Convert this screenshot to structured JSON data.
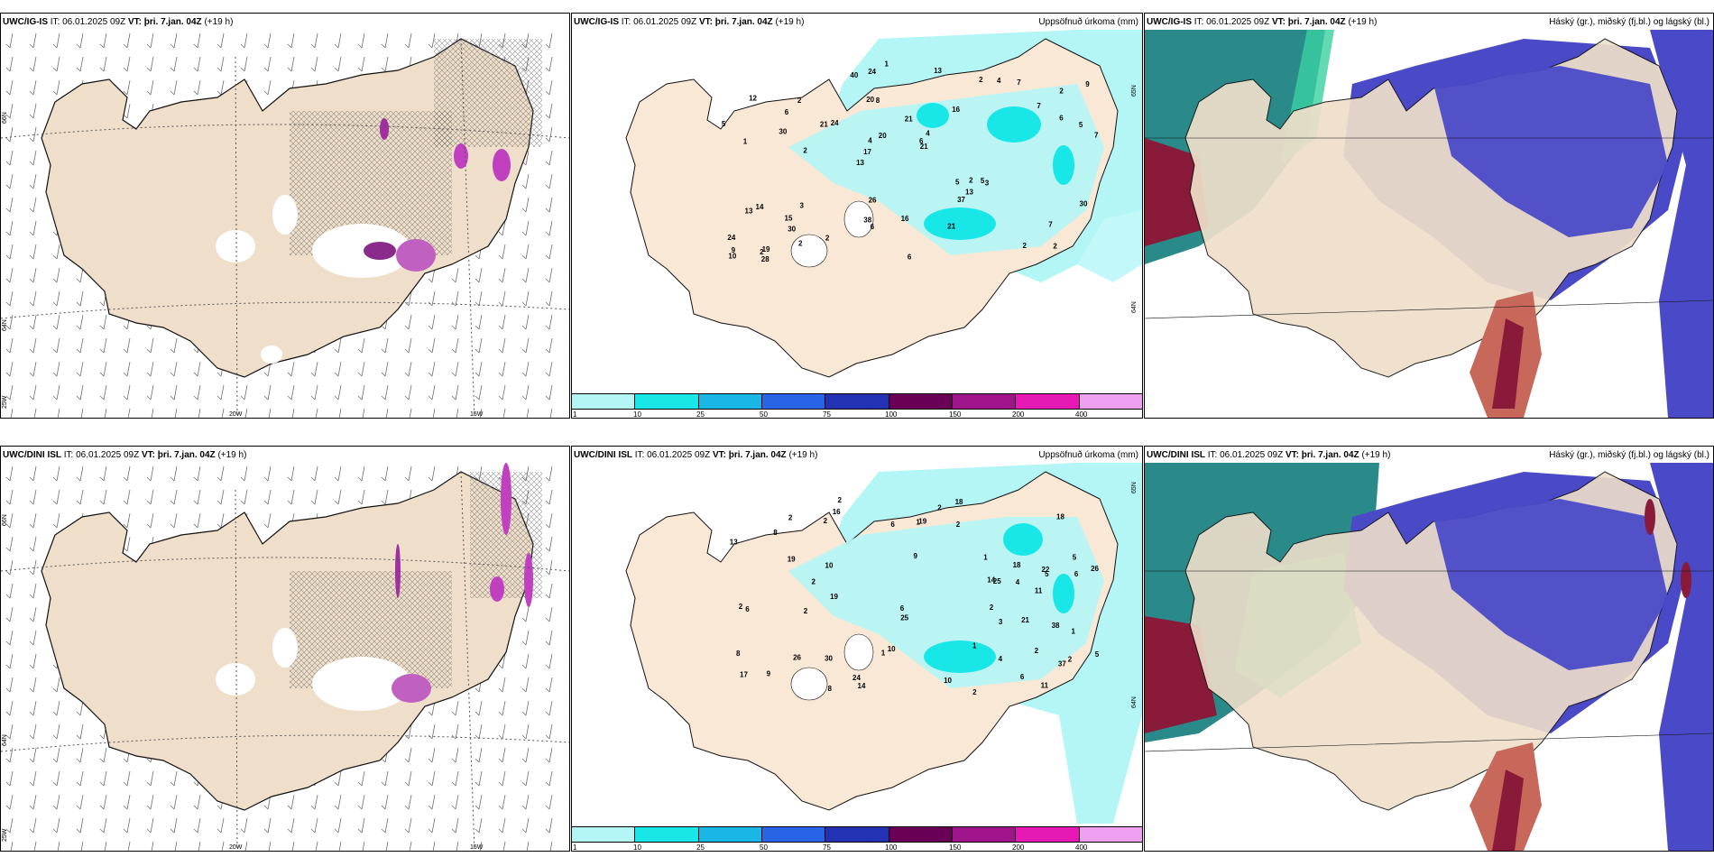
{
  "rows": [
    {
      "model": "UWC/IG-IS",
      "it_label": "IT:",
      "it": "06.01.2025 09Z",
      "vt_label": "VT:",
      "vt": "þri. 7.jan. 04Z",
      "lead": "(+19 h)"
    },
    {
      "model": "UWC/DINI ISL",
      "it_label": "IT:",
      "it": "06.01.2025 09Z",
      "vt_label": "VT:",
      "vt": "þri. 7.jan. 04Z",
      "lead": "(+19 h)"
    }
  ],
  "titles": {
    "precip": "Uppsöfnuð úrkoma (mm)",
    "clouds": "Háský (gr.), miðský (fj.bl.) og lágský (bl.)"
  },
  "axis_labels": {
    "lat66": "66N",
    "lat64": "64N",
    "lon25": "25W",
    "lon20": "20W",
    "lon15": "15W",
    "lat65": "65N",
    "lat64b": "64N"
  },
  "colorbar": {
    "colors": [
      "#b4f6f6",
      "#19e6e6",
      "#1ab7e6",
      "#2a64e6",
      "#2332b4",
      "#690055",
      "#a0148c",
      "#e619b4",
      "#f0a0f0"
    ],
    "labels": [
      "1",
      "10",
      "25",
      "50",
      "75",
      "100",
      "150",
      "200",
      "400"
    ]
  },
  "precip_numbers_top": [
    "2",
    "1",
    "2",
    "13",
    "16",
    "19",
    "20",
    "21",
    "14",
    "24",
    "24",
    "30",
    "8",
    "4",
    "3",
    "12",
    "24",
    "7",
    "5",
    "6",
    "17",
    "38",
    "4",
    "2",
    "2",
    "3",
    "2",
    "7",
    "5",
    "6",
    "21",
    "30",
    "37",
    "2",
    "5",
    "6",
    "9",
    "6",
    "21",
    "13",
    "7",
    "9",
    "13",
    "21",
    "15",
    "28",
    "10",
    "16",
    "7",
    "1",
    "2",
    "5",
    "6",
    "4",
    "2",
    "13",
    "40",
    "20",
    "30",
    "26",
    "2",
    "2"
  ],
  "precip_numbers_bottom": [
    "2",
    "5",
    "2",
    "9",
    "17",
    "16",
    "22",
    "30",
    "18",
    "19",
    "6",
    "13",
    "11",
    "14",
    "8",
    "8",
    "37",
    "2",
    "10",
    "5",
    "2",
    "6",
    "10",
    "14",
    "24",
    "1",
    "2",
    "2",
    "1",
    "5",
    "2",
    "4",
    "8",
    "6",
    "38",
    "6",
    "25",
    "6",
    "11",
    "19",
    "21",
    "4",
    "1",
    "2",
    "1",
    "3",
    "9",
    "18",
    "10",
    "18",
    "26",
    "25",
    "19",
    "26",
    "1",
    "2",
    "2",
    "2",
    "2"
  ]
}
